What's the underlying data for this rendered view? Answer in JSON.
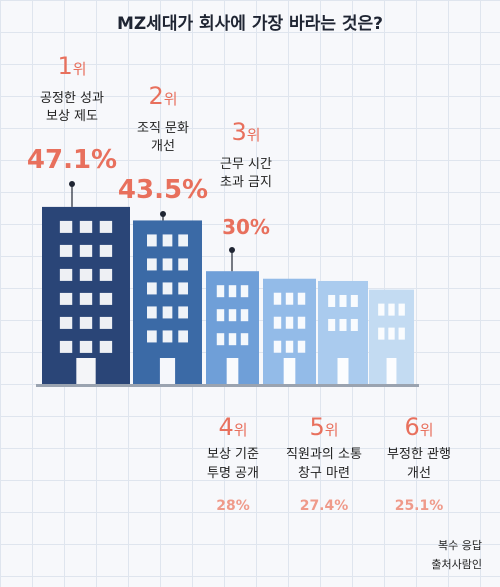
{
  "chart_data": {
    "type": "bar",
    "title": "MZ세대가 회사에 가장 바라는 것은?",
    "rank_suffix": "위",
    "series": [
      {
        "rank": "1",
        "label_lines": [
          "공정한 성과",
          "보상 제도"
        ],
        "value": 47.1,
        "value_label": "47.1%",
        "color": "#2a4577"
      },
      {
        "rank": "2",
        "label_lines": [
          "조직 문화",
          "개선"
        ],
        "value": 43.5,
        "value_label": "43.5%",
        "color": "#3b6aa6"
      },
      {
        "rank": "3",
        "label_lines": [
          "근무 시간",
          "초과 금지"
        ],
        "value": 30,
        "value_label": "30%",
        "color": "#6f9fd8"
      },
      {
        "rank": "4",
        "label_lines": [
          "보상 기준",
          "투명 공개"
        ],
        "value": 28,
        "value_label": "28%",
        "color": "#93bbe8"
      },
      {
        "rank": "5",
        "label_lines": [
          "직원과의 소통",
          "창구 마련"
        ],
        "value": 27.4,
        "value_label": "27.4%",
        "color": "#aacbee"
      },
      {
        "rank": "6",
        "label_lines": [
          "부정한 관행",
          "개선"
        ],
        "value": 25.1,
        "value_label": "25.1%",
        "color": "#c3dbf2"
      }
    ],
    "notes": [
      "복수 응답",
      "출처사람인"
    ]
  }
}
